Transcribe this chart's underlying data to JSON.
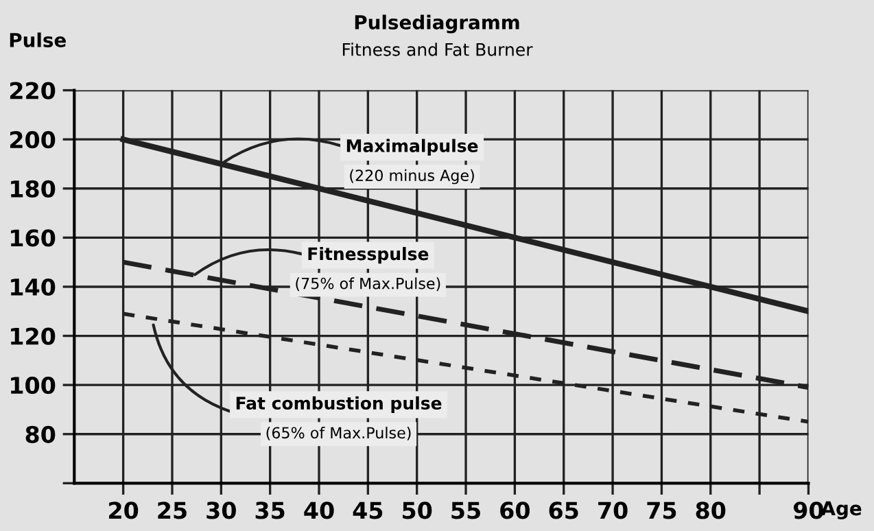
{
  "chart_data": {
    "type": "line",
    "title": "Pulsediagramm",
    "subtitle": "Fitness and Fat Burner",
    "xlabel": "Age",
    "ylabel": "Pulse",
    "x": [
      20,
      90
    ],
    "series": [
      {
        "color": "#222222",
        "values": [
          200,
          130
        ],
        "line_style": "solid"
      },
      {
        "color": "#222222",
        "values": [
          150,
          99
        ],
        "line_style": "dashed"
      },
      {
        "color": "#222222",
        "values": [
          129,
          85
        ],
        "line_style": "dotted"
      }
    ],
    "xlim": [
      15,
      90
    ],
    "xticks": [
      20,
      25,
      30,
      35,
      40,
      45,
      50,
      55,
      60,
      65,
      70,
      75,
      80,
      {
        "value": 85,
        "label": null
      },
      90
    ],
    "ylim": [
      60,
      220
    ],
    "yticks": [
      {
        "value": 60,
        "label": null
      },
      80,
      100,
      120,
      140,
      160,
      180,
      200,
      220
    ],
    "grid": true,
    "legend": false,
    "marker": "none",
    "annotations": [
      {
        "text": "Maximalpulse\n(220 minus Age)",
        "x": 30,
        "y": 190
      },
      {
        "text": "Fitnesspulse\n(75% of Max.Pulse)",
        "x": 27,
        "y": 144
      },
      {
        "text": "Fat combustion pulse\n(65% of Max.Pulse)",
        "x": 23,
        "y": 126
      }
    ]
  }
}
